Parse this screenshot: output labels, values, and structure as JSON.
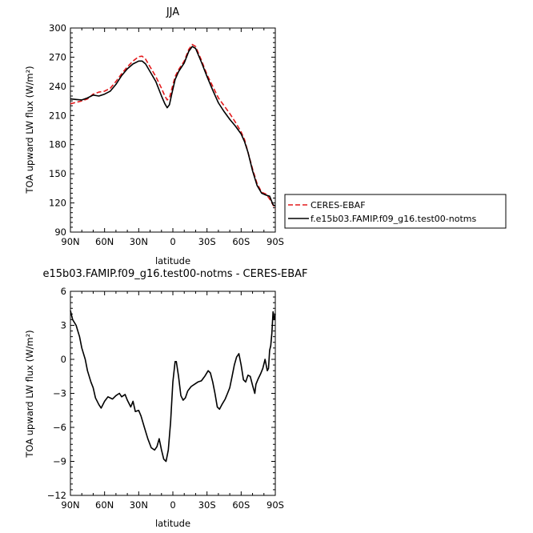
{
  "chart_data": [
    {
      "type": "line",
      "title": "JJA",
      "xlabel": "latitude",
      "ylabel": "TOA upward LW flux (W/m²)",
      "ylim": [
        90,
        300
      ],
      "yticks": [
        "90",
        "120",
        "150",
        "180",
        "210",
        "240",
        "270",
        "300"
      ],
      "xlim": [
        90,
        -90
      ],
      "xticks": [
        {
          "value": 90,
          "label": "90N"
        },
        {
          "value": 60,
          "label": "60N"
        },
        {
          "value": 30,
          "label": "30N"
        },
        {
          "value": 0,
          "label": "0"
        },
        {
          "value": -30,
          "label": "30S"
        },
        {
          "value": -60,
          "label": "60S"
        },
        {
          "value": -90,
          "label": "90S"
        }
      ],
      "legend_position": "outside-right",
      "series": [
        {
          "name": "CERES-EBAF",
          "color": "#e31a1c",
          "dash": "dashed",
          "points": [
            [
              90,
              222
            ],
            [
              85,
              223.5
            ],
            [
              80,
              225
            ],
            [
              75,
              227
            ],
            [
              70,
              232
            ],
            [
              65,
              234
            ],
            [
              60,
              235
            ],
            [
              55,
              238
            ],
            [
              50,
              245
            ],
            [
              45,
              253
            ],
            [
              40,
              260
            ],
            [
              35,
              266
            ],
            [
              30,
              270.5
            ],
            [
              27,
              271
            ],
            [
              24,
              268
            ],
            [
              20,
              260
            ],
            [
              15,
              250
            ],
            [
              10,
              238
            ],
            [
              7,
              230
            ],
            [
              5,
              226
            ],
            [
              3,
              228
            ],
            [
              1,
              237
            ],
            [
              -2,
              250
            ],
            [
              -5,
              257
            ],
            [
              -10,
              266
            ],
            [
              -14,
              278
            ],
            [
              -17,
              283
            ],
            [
              -20,
              281
            ],
            [
              -25,
              267
            ],
            [
              -30,
              252
            ],
            [
              -35,
              240
            ],
            [
              -40,
              228
            ],
            [
              -45,
              220
            ],
            [
              -50,
              212
            ],
            [
              -55,
              203
            ],
            [
              -60,
              193
            ],
            [
              -63,
              185
            ],
            [
              -66,
              172
            ],
            [
              -70,
              155
            ],
            [
              -74,
              140
            ],
            [
              -78,
              131
            ],
            [
              -82,
              129
            ],
            [
              -85,
              124
            ],
            [
              -88,
              118
            ],
            [
              -90,
              114
            ]
          ]
        },
        {
          "name": "f.e15b03.FAMIP.f09_g16.test00-notms",
          "color": "#000000",
          "dash": "solid",
          "points": [
            [
              90,
              227
            ],
            [
              85,
              226.5
            ],
            [
              80,
              226
            ],
            [
              75,
              228
            ],
            [
              70,
              231
            ],
            [
              65,
              230
            ],
            [
              60,
              232
            ],
            [
              55,
              235
            ],
            [
              50,
              242
            ],
            [
              45,
              251
            ],
            [
              40,
              258
            ],
            [
              35,
              263
            ],
            [
              30,
              266
            ],
            [
              27,
              266
            ],
            [
              24,
              263
            ],
            [
              20,
              255
            ],
            [
              15,
              245
            ],
            [
              10,
              230
            ],
            [
              7,
              222
            ],
            [
              5,
              218
            ],
            [
              3,
              221
            ],
            [
              1,
              232
            ],
            [
              -2,
              247
            ],
            [
              -5,
              255
            ],
            [
              -10,
              264
            ],
            [
              -14,
              276
            ],
            [
              -17,
              281
            ],
            [
              -20,
              279
            ],
            [
              -25,
              265
            ],
            [
              -30,
              250
            ],
            [
              -35,
              236
            ],
            [
              -40,
              223
            ],
            [
              -45,
              214
            ],
            [
              -50,
              206
            ],
            [
              -55,
              199
            ],
            [
              -60,
              191
            ],
            [
              -63,
              183
            ],
            [
              -66,
              172
            ],
            [
              -70,
              153
            ],
            [
              -74,
              138
            ],
            [
              -78,
              130
            ],
            [
              -82,
              128
            ],
            [
              -85,
              127
            ],
            [
              -88,
              118
            ],
            [
              -90,
              117
            ]
          ]
        }
      ]
    },
    {
      "type": "line",
      "title": "e15b03.FAMIP.f09_g16.test00-notms - CERES-EBAF",
      "xlabel": "latitude",
      "ylabel": "TOA upward LW flux (W/m²)",
      "ylim": [
        -12,
        6
      ],
      "yticks": [
        "−12",
        "−9",
        "−6",
        "−3",
        "0",
        "3",
        "6"
      ],
      "xlim": [
        90,
        -90
      ],
      "xticks": [
        {
          "value": 90,
          "label": "90N"
        },
        {
          "value": 60,
          "label": "60N"
        },
        {
          "value": 30,
          "label": "30N"
        },
        {
          "value": 0,
          "label": "0"
        },
        {
          "value": -30,
          "label": "30S"
        },
        {
          "value": -60,
          "label": "60S"
        },
        {
          "value": -90,
          "label": "90S"
        }
      ],
      "series": [
        {
          "color": "#000000",
          "dash": "solid",
          "points": [
            [
              90,
              4.3
            ],
            [
              88,
              3.5
            ],
            [
              85,
              3.0
            ],
            [
              82,
              2.0
            ],
            [
              80,
              1.0
            ],
            [
              77,
              0.0
            ],
            [
              75,
              -1.0
            ],
            [
              72,
              -2.0
            ],
            [
              70,
              -2.5
            ],
            [
              68,
              -3.4
            ],
            [
              65,
              -4.0
            ],
            [
              63,
              -4.3
            ],
            [
              60,
              -3.7
            ],
            [
              57,
              -3.3
            ],
            [
              53,
              -3.5
            ],
            [
              50,
              -3.2
            ],
            [
              47,
              -3.0
            ],
            [
              45,
              -3.3
            ],
            [
              42,
              -3.1
            ],
            [
              40,
              -3.6
            ],
            [
              37,
              -4.2
            ],
            [
              35,
              -3.7
            ],
            [
              33,
              -4.6
            ],
            [
              30,
              -4.5
            ],
            [
              28,
              -5.0
            ],
            [
              25,
              -6.0
            ],
            [
              22,
              -7.0
            ],
            [
              19,
              -7.8
            ],
            [
              16,
              -8.0
            ],
            [
              14,
              -7.7
            ],
            [
              12,
              -7.0
            ],
            [
              10,
              -8.0
            ],
            [
              8,
              -8.8
            ],
            [
              6,
              -9.0
            ],
            [
              4,
              -8.0
            ],
            [
              2,
              -5.5
            ],
            [
              0,
              -2.0
            ],
            [
              -2,
              -0.2
            ],
            [
              -3,
              -0.2
            ],
            [
              -5,
              -1.5
            ],
            [
              -7,
              -3.2
            ],
            [
              -9,
              -3.6
            ],
            [
              -11,
              -3.4
            ],
            [
              -13,
              -2.8
            ],
            [
              -16,
              -2.4
            ],
            [
              -19,
              -2.2
            ],
            [
              -22,
              -2.0
            ],
            [
              -25,
              -1.9
            ],
            [
              -28,
              -1.5
            ],
            [
              -31,
              -1.0
            ],
            [
              -33,
              -1.2
            ],
            [
              -35,
              -2.0
            ],
            [
              -37,
              -3.0
            ],
            [
              -39,
              -4.2
            ],
            [
              -41,
              -4.4
            ],
            [
              -43,
              -4.0
            ],
            [
              -46,
              -3.5
            ],
            [
              -48,
              -3.0
            ],
            [
              -50,
              -2.5
            ],
            [
              -52,
              -1.5
            ],
            [
              -54,
              -0.5
            ],
            [
              -56,
              0.2
            ],
            [
              -58,
              0.5
            ],
            [
              -60,
              -0.5
            ],
            [
              -62,
              -1.8
            ],
            [
              -64,
              -2.0
            ],
            [
              -66,
              -1.4
            ],
            [
              -68,
              -1.5
            ],
            [
              -70,
              -2.3
            ],
            [
              -72,
              -3.0
            ],
            [
              -73,
              -2.2
            ],
            [
              -75,
              -1.7
            ],
            [
              -77,
              -1.3
            ],
            [
              -79,
              -0.8
            ],
            [
              -81,
              0.0
            ],
            [
              -82,
              -0.5
            ],
            [
              -83,
              -1.0
            ],
            [
              -84,
              -0.8
            ],
            [
              -85,
              0.8
            ],
            [
              -86,
              1.2
            ],
            [
              -87,
              2.3
            ],
            [
              -88,
              4.2
            ],
            [
              -89,
              3.5
            ],
            [
              -90,
              4.0
            ]
          ]
        }
      ]
    }
  ]
}
